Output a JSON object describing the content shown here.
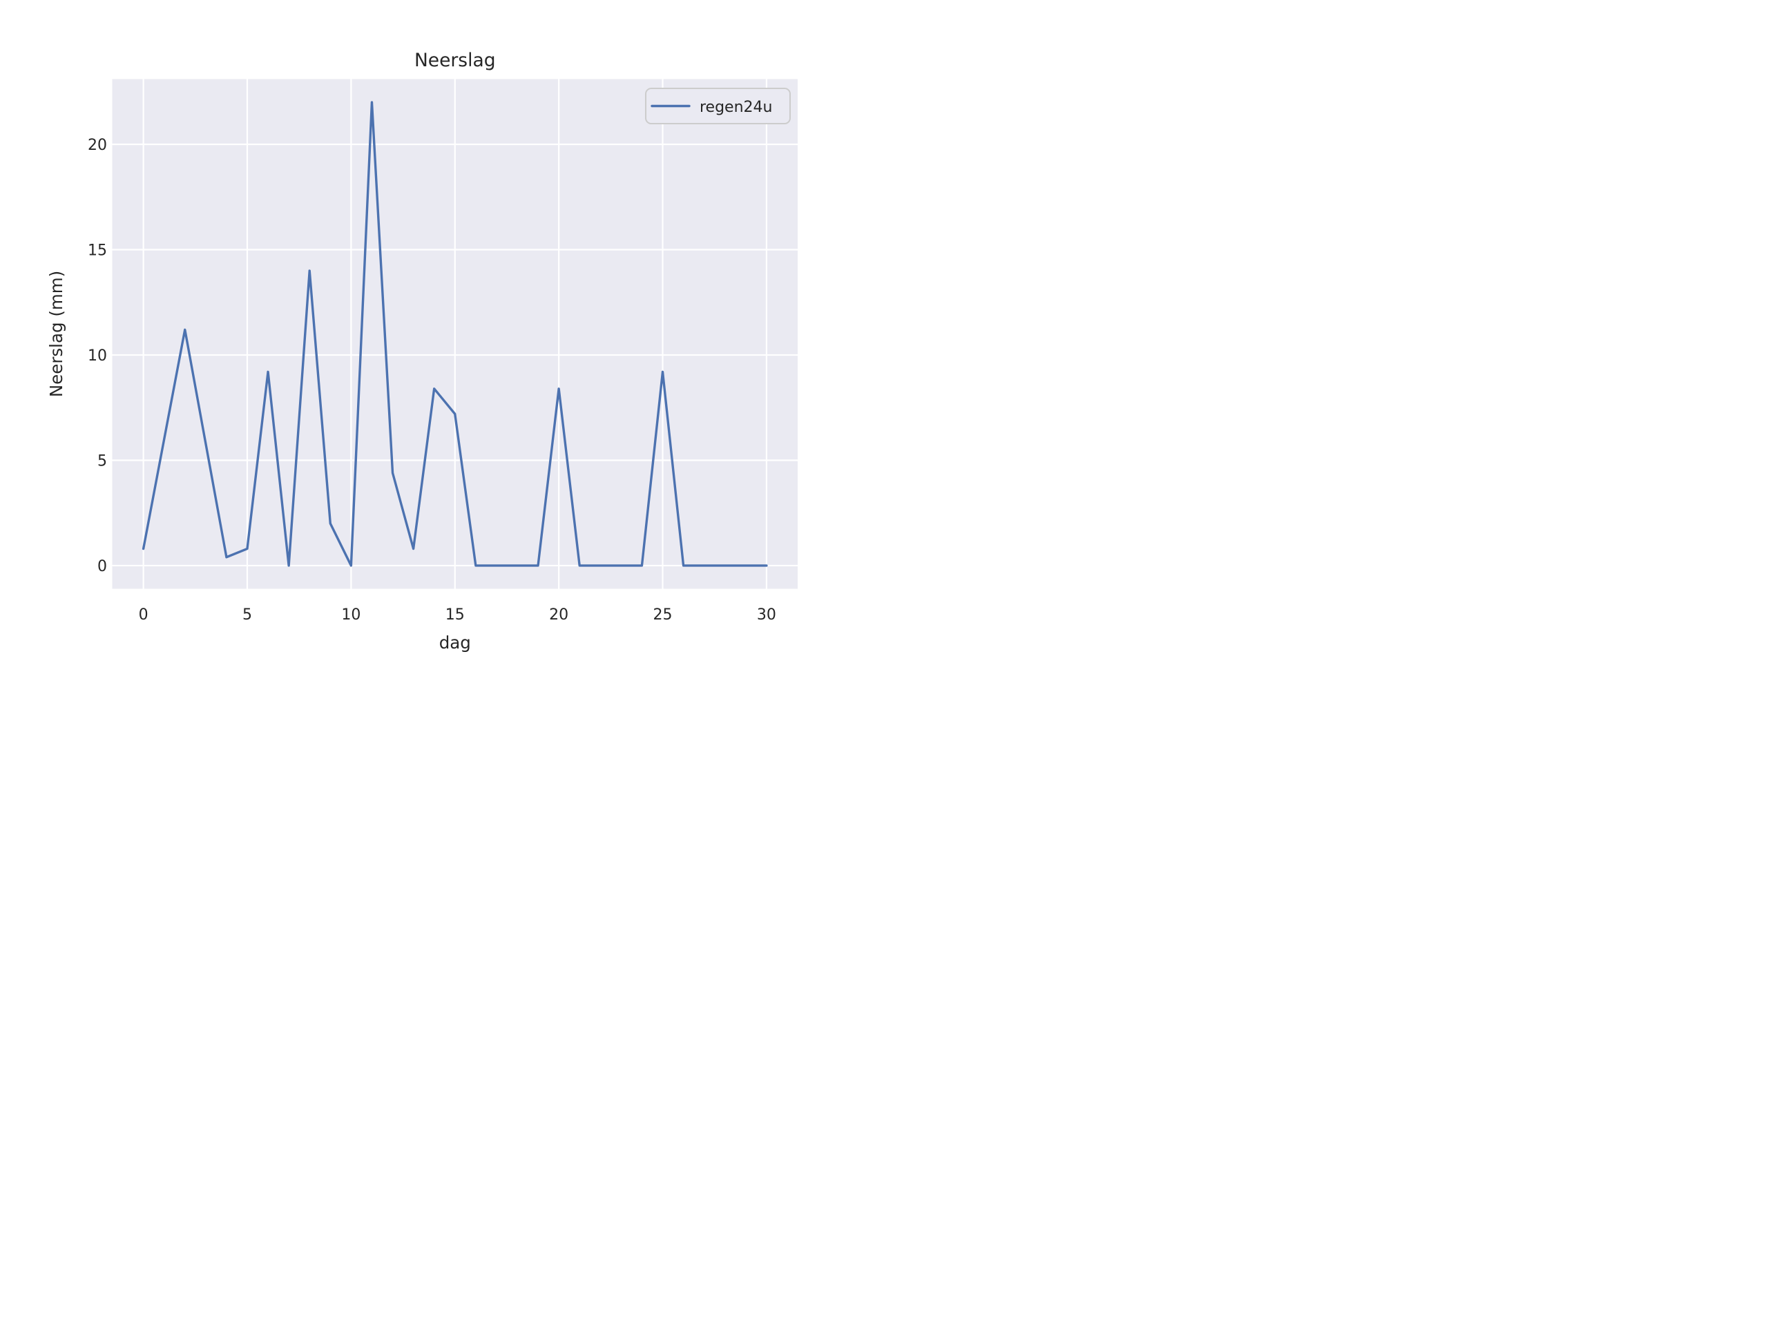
{
  "title": "Neerslag",
  "colors": {
    "figure_bg": "#ffffff",
    "axes_bg": "#eaeaf2",
    "grid": "#ffffff",
    "line": "#4c72b0",
    "text": "#262626",
    "legend_edge": "#cccccc"
  },
  "legend": {
    "label": "regen24u",
    "position": "upper right"
  },
  "axes": {
    "xlabel": "dag",
    "ylabel": "Neerslag (mm)"
  },
  "chart_data": {
    "type": "line",
    "title": "Neerslag",
    "xlabel": "dag",
    "ylabel": "Neerslag (mm)",
    "grid": true,
    "legend_position": "upper right",
    "xlim": [
      -1.5,
      31.5
    ],
    "ylim": [
      -1.1,
      23.1
    ],
    "xticks": [
      0,
      5,
      10,
      15,
      20,
      25,
      30
    ],
    "yticks": [
      0,
      5,
      10,
      15,
      20
    ],
    "series": [
      {
        "name": "regen24u",
        "x": [
          0,
          1,
          2,
          3,
          4,
          5,
          6,
          7,
          8,
          9,
          10,
          11,
          12,
          13,
          14,
          15,
          16,
          17,
          18,
          19,
          20,
          21,
          22,
          23,
          24,
          25,
          26,
          27,
          28,
          29,
          30
        ],
        "values": [
          0.8,
          6.0,
          11.2,
          5.8,
          0.4,
          0.8,
          9.2,
          0.0,
          14.0,
          2.0,
          0.0,
          22.0,
          4.4,
          0.8,
          8.4,
          7.2,
          0.0,
          0.0,
          0.0,
          0.0,
          8.4,
          0.0,
          0.0,
          0.0,
          0.0,
          9.2,
          0.0,
          0.0,
          0.0,
          0.0,
          0.0
        ]
      }
    ]
  }
}
